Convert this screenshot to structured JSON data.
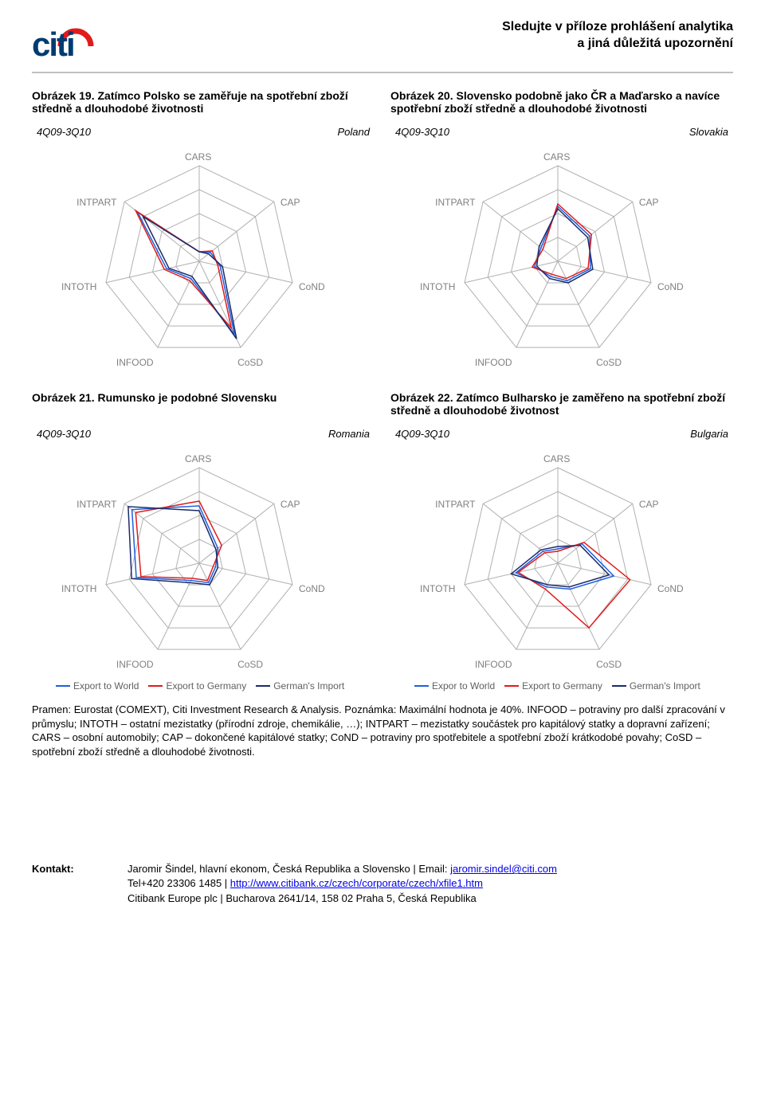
{
  "header": {
    "logo_text": "citi",
    "disclaimer_line1": "Sledujte v příloze prohlášení analytika",
    "disclaimer_line2": "a jiná důležitá upozornění"
  },
  "charts": [
    {
      "caption": "Obrázek 19. Zatímco Polsko se zaměřuje na spotřební zboží středně a dlouhodobé životnosti",
      "period": "4Q09-3Q10",
      "country": "Poland",
      "series": [
        {
          "name": "s1",
          "color": "#1f5fe0",
          "values": [
            4,
            6,
            9,
            34,
            8,
            14,
            33
          ]
        },
        {
          "name": "s2",
          "color": "#e11b1b",
          "values": [
            4,
            7,
            8,
            31,
            9,
            15,
            34
          ]
        },
        {
          "name": "s3",
          "color": "#1a2c6b",
          "values": [
            4,
            5,
            10,
            36,
            7,
            13,
            30
          ]
        }
      ]
    },
    {
      "caption": "Obrázek 20. Slovensko podobně jako ČR a Maďarsko a navíce  spotřební zboží středně a dlouhodobé životnosti",
      "period": "4Q09-3Q10",
      "country": "Slovakia",
      "series": [
        {
          "name": "s1",
          "color": "#1f5fe0",
          "values": [
            23,
            17,
            14,
            9,
            7,
            10,
            9
          ]
        },
        {
          "name": "s2",
          "color": "#e11b1b",
          "values": [
            24,
            18,
            13,
            8,
            6,
            11,
            8
          ]
        },
        {
          "name": "s3",
          "color": "#1a2c6b",
          "values": [
            22,
            16,
            15,
            10,
            8,
            9,
            10
          ]
        }
      ]
    },
    {
      "caption": "Obrázek 21. Rumunsko je podobné Slovensku",
      "period": "4Q09-3Q10",
      "country": "Romania",
      "series": [
        {
          "name": "s1",
          "color": "#1f5fe0",
          "values": [
            24,
            10,
            7,
            9,
            8,
            27,
            36
          ]
        },
        {
          "name": "s2",
          "color": "#e11b1b",
          "values": [
            26,
            12,
            6,
            8,
            7,
            25,
            34
          ]
        },
        {
          "name": "s3",
          "color": "#1a2c6b",
          "values": [
            22,
            9,
            8,
            10,
            9,
            29,
            38
          ]
        }
      ],
      "legend": [
        {
          "label": "Export to World",
          "color": "#1f5fe0"
        },
        {
          "label": "Export to Germany",
          "color": "#e11b1b"
        },
        {
          "label": "German's Import",
          "color": "#1a2c6b"
        }
      ]
    },
    {
      "caption": "Obrázek 22. Zatímco Bulharsko je zaměřeno na spotřební zboží středně a dlouhodobé životnost",
      "period": "4Q09-3Q10",
      "country": "Bulgaria",
      "series": [
        {
          "name": "s1",
          "color": "#1f5fe0",
          "values": [
            6,
            13,
            24,
            12,
            11,
            18,
            8
          ]
        },
        {
          "name": "s2",
          "color": "#e11b1b",
          "values": [
            5,
            14,
            31,
            30,
            12,
            17,
            7
          ]
        },
        {
          "name": "s3",
          "color": "#1a2c6b",
          "values": [
            7,
            12,
            22,
            11,
            10,
            20,
            9
          ]
        }
      ],
      "legend": [
        {
          "label": "Expor to World",
          "color": "#1f5fe0"
        },
        {
          "label": "Export to Germany",
          "color": "#e11b1b"
        },
        {
          "label": "German's Import",
          "color": "#1a2c6b"
        }
      ]
    }
  ],
  "chart_common": {
    "type": "radar",
    "max_value": 40,
    "rings": 4,
    "axes": [
      "CARS",
      "CAP",
      "CoND",
      "CoSD",
      "INFOOD",
      "INTOTH",
      "INTPART"
    ],
    "axis_label_color": "#808080",
    "axis_label_fontsize": 12,
    "grid_color": "#b0b0b0",
    "grid_stroke_width": 1,
    "background_color": "#ffffff",
    "line_width": 1.5,
    "fill_opacity": 0
  },
  "footnote": "Pramen: Eurostat (COMEXT), Citi Investment Research & Analysis. Poznámka: Maximální hodnota je 40%. INFOOD – potraviny pro další zpracování v průmyslu; INTOTH – ostatní mezistatky (přírodní zdroje, chemikálie, …); INTPART – mezistatky součástek pro kapitálový statky a dopravní zařízení; CARS – osobní automobily; CAP – dokončené kapitálové statky; CoND – potraviny pro spotřebitele a spotřební zboží krátkodobé povahy; CoSD – spotřební zboží středně a dlouhodobé životnosti.",
  "footer": {
    "label": "Kontakt:",
    "line1_pre": "Jaromir Šindel, hlavní ekonom, Česká Republika a Slovensko | Email: ",
    "email": "jaromir.sindel@citi.com",
    "line2_pre": "Tel+420 23306 1485 | ",
    "url": "http://www.citibank.cz/czech/corporate/czech/xfile1.htm",
    "line3": "Citibank Europe plc | Bucharova 2641/14, 158 02  Praha 5, Česká Republika"
  }
}
